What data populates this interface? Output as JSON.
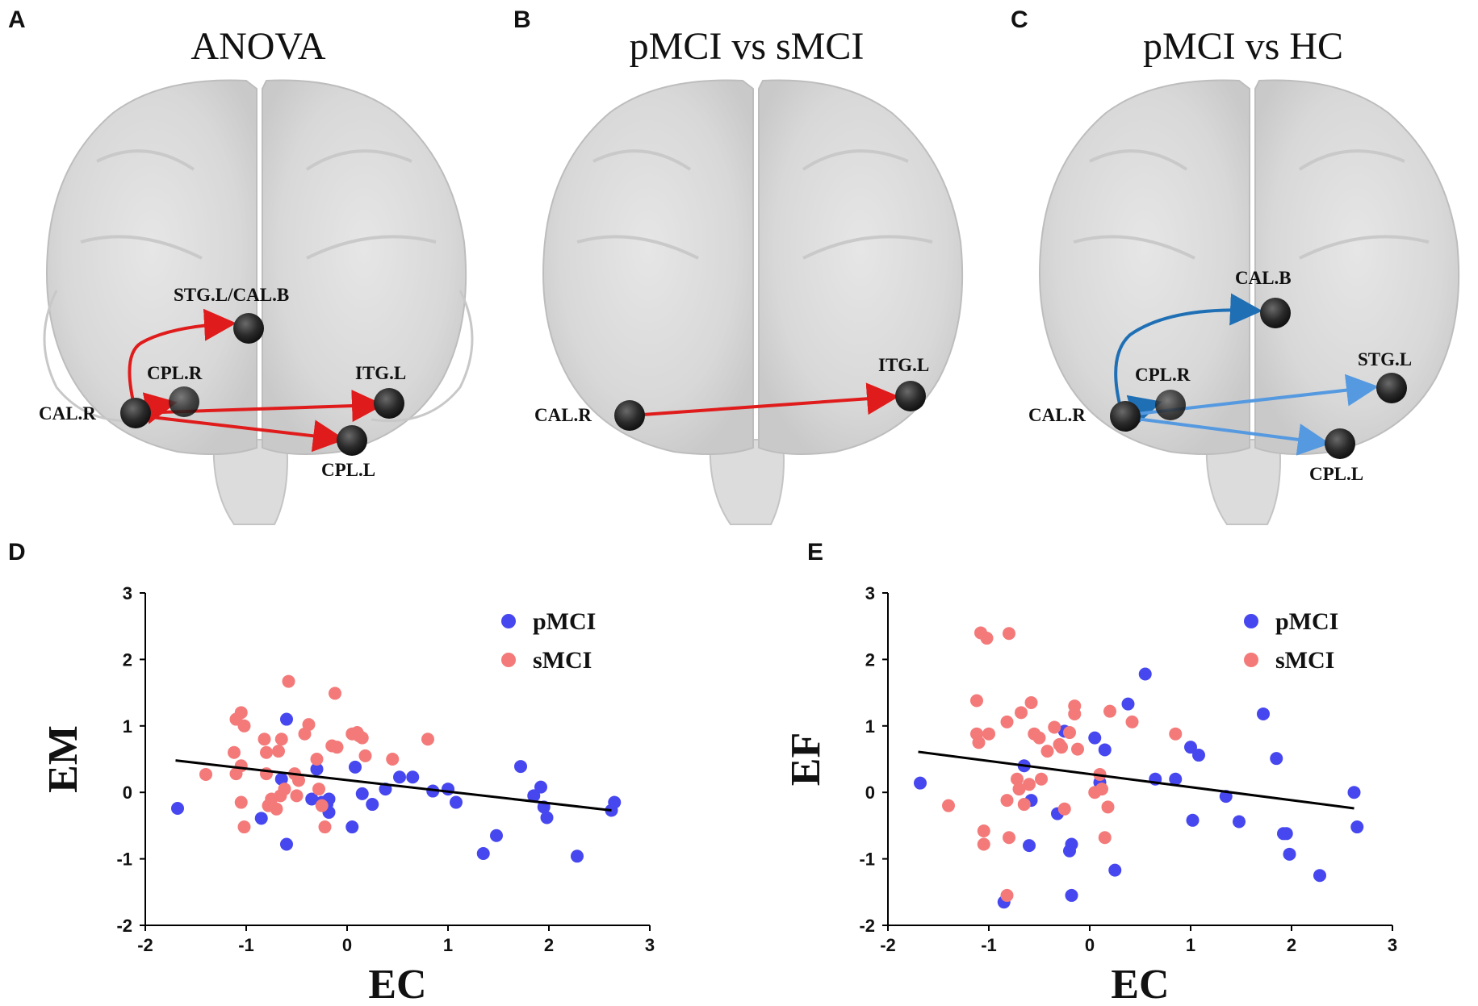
{
  "panels": {
    "A": {
      "letter": "A",
      "title": "ANOVA",
      "labels": {
        "cal_r": "CAL.R",
        "stg_cal": "STG.L/CAL.B",
        "cpl_r": "CPL.R",
        "itg_l": "ITG.L",
        "cpl_l": "CPL.L"
      }
    },
    "B": {
      "letter": "B",
      "title": "pMCI vs sMCI",
      "labels": {
        "cal_r": "CAL.R",
        "itg_l": "ITG.L"
      }
    },
    "C": {
      "letter": "C",
      "title": "pMCI vs HC",
      "labels": {
        "cal_r": "CAL.R",
        "cal_b": "CAL.B",
        "cpl_r": "CPL.R",
        "stg_l": "STG.L",
        "cpl_l": "CPL.L"
      }
    },
    "D": {
      "letter": "D"
    },
    "E": {
      "letter": "E"
    }
  },
  "colors": {
    "red_arrow": "#e01b1b",
    "dark_blue_arrow": "#1f6fb5",
    "light_blue_arrow": "#5599e0",
    "pMCI": "#4747f0",
    "sMCI": "#f47a7a",
    "fit_line": "#000000"
  },
  "chart_data": [
    {
      "type": "scatter",
      "panel": "D",
      "xlabel": "EC",
      "ylabel": "EM",
      "xlim": [
        -2,
        3
      ],
      "ylim": [
        -2,
        3
      ],
      "xticks": [
        "-2",
        "-1",
        "0",
        "1",
        "2",
        "3"
      ],
      "yticks": [
        "-2",
        "-1",
        "0",
        "1",
        "2",
        "3"
      ],
      "legend_position": "top-right",
      "fit_line": {
        "x": [
          -1.7,
          2.62
        ],
        "y": [
          0.48,
          -0.27
        ]
      },
      "series": [
        {
          "name": "pMCI",
          "points": [
            [
              -1.68,
              -0.24
            ],
            [
              -0.85,
              -0.39
            ],
            [
              -0.6,
              1.1
            ],
            [
              -0.6,
              -0.78
            ],
            [
              -0.65,
              0.2
            ],
            [
              -0.3,
              0.35
            ],
            [
              -0.35,
              -0.1
            ],
            [
              -0.25,
              -0.15
            ],
            [
              -0.2,
              -0.18
            ],
            [
              -0.18,
              -0.1
            ],
            [
              -0.18,
              -0.3
            ],
            [
              0.05,
              -0.52
            ],
            [
              0.08,
              0.38
            ],
            [
              0.15,
              -0.02
            ],
            [
              0.25,
              -0.18
            ],
            [
              0.38,
              0.05
            ],
            [
              0.52,
              0.23
            ],
            [
              0.65,
              0.23
            ],
            [
              0.85,
              0.02
            ],
            [
              1.0,
              0.05
            ],
            [
              1.08,
              -0.15
            ],
            [
              1.35,
              -0.92
            ],
            [
              1.48,
              -0.65
            ],
            [
              1.72,
              0.39
            ],
            [
              1.85,
              -0.05
            ],
            [
              1.92,
              0.08
            ],
            [
              1.95,
              -0.22
            ],
            [
              1.98,
              -0.38
            ],
            [
              2.28,
              -0.96
            ],
            [
              2.62,
              -0.27
            ],
            [
              2.65,
              -0.15
            ]
          ]
        },
        {
          "name": "sMCI",
          "points": [
            [
              -1.4,
              0.27
            ],
            [
              -1.12,
              0.6
            ],
            [
              -1.1,
              1.1
            ],
            [
              -1.05,
              1.2
            ],
            [
              -1.1,
              0.28
            ],
            [
              -1.05,
              0.4
            ],
            [
              -1.02,
              1.0
            ],
            [
              -1.05,
              -0.15
            ],
            [
              -1.02,
              -0.52
            ],
            [
              -0.82,
              0.8
            ],
            [
              -0.8,
              0.6
            ],
            [
              -0.8,
              0.28
            ],
            [
              -0.75,
              -0.1
            ],
            [
              -0.78,
              -0.2
            ],
            [
              -0.7,
              -0.25
            ],
            [
              -0.68,
              0.62
            ],
            [
              -0.66,
              -0.05
            ],
            [
              -0.65,
              0.8
            ],
            [
              -0.62,
              0.05
            ],
            [
              -0.58,
              1.67
            ],
            [
              -0.52,
              0.28
            ],
            [
              -0.5,
              -0.05
            ],
            [
              -0.48,
              0.18
            ],
            [
              -0.42,
              0.88
            ],
            [
              -0.38,
              1.02
            ],
            [
              -0.3,
              0.5
            ],
            [
              -0.28,
              0.05
            ],
            [
              -0.25,
              -0.2
            ],
            [
              -0.22,
              -0.52
            ],
            [
              -0.15,
              0.7
            ],
            [
              -0.12,
              1.49
            ],
            [
              -0.1,
              0.68
            ],
            [
              0.05,
              0.88
            ],
            [
              0.1,
              0.9
            ],
            [
              0.12,
              0.85
            ],
            [
              0.15,
              0.82
            ],
            [
              0.18,
              0.55
            ],
            [
              0.45,
              0.5
            ],
            [
              0.8,
              0.8
            ]
          ]
        }
      ]
    },
    {
      "type": "scatter",
      "panel": "E",
      "xlabel": "EC",
      "ylabel": "EF",
      "xlim": [
        -2,
        3
      ],
      "ylim": [
        -2,
        3
      ],
      "xticks": [
        "-2",
        "-1",
        "0",
        "1",
        "2",
        "3"
      ],
      "yticks": [
        "-2",
        "-1",
        "0",
        "1",
        "2",
        "3"
      ],
      "legend_position": "top-right",
      "fit_line": {
        "x": [
          -1.7,
          2.62
        ],
        "y": [
          0.61,
          -0.24
        ]
      },
      "series": [
        {
          "name": "pMCI",
          "points": [
            [
              -1.68,
              0.14
            ],
            [
              -0.85,
              -1.65
            ],
            [
              -0.65,
              0.4
            ],
            [
              -0.58,
              -0.12
            ],
            [
              -0.6,
              -0.8
            ],
            [
              -0.32,
              -0.32
            ],
            [
              -0.25,
              0.92
            ],
            [
              -0.18,
              -0.78
            ],
            [
              -0.2,
              -0.88
            ],
            [
              -0.18,
              -1.55
            ],
            [
              0.05,
              0.82
            ],
            [
              0.1,
              0.15
            ],
            [
              0.15,
              0.64
            ],
            [
              0.25,
              -1.17
            ],
            [
              0.38,
              1.33
            ],
            [
              0.55,
              1.78
            ],
            [
              0.65,
              0.2
            ],
            [
              0.85,
              0.2
            ],
            [
              1.0,
              0.68
            ],
            [
              1.02,
              -0.42
            ],
            [
              1.08,
              0.56
            ],
            [
              1.35,
              -0.06
            ],
            [
              1.48,
              -0.44
            ],
            [
              1.72,
              1.18
            ],
            [
              1.85,
              0.51
            ],
            [
              1.92,
              -0.62
            ],
            [
              1.95,
              -0.62
            ],
            [
              1.98,
              -0.93
            ],
            [
              2.28,
              -1.25
            ],
            [
              2.62,
              0.0
            ],
            [
              2.65,
              -0.52
            ]
          ]
        },
        {
          "name": "sMCI",
          "points": [
            [
              -1.4,
              -0.2
            ],
            [
              -1.12,
              1.38
            ],
            [
              -1.12,
              0.88
            ],
            [
              -1.08,
              2.4
            ],
            [
              -1.02,
              2.32
            ],
            [
              -1.1,
              0.75
            ],
            [
              -1.05,
              -0.58
            ],
            [
              -1.05,
              -0.78
            ],
            [
              -1.0,
              0.88
            ],
            [
              -0.8,
              2.39
            ],
            [
              -0.82,
              1.06
            ],
            [
              -0.82,
              -0.12
            ],
            [
              -0.8,
              -0.68
            ],
            [
              -0.82,
              -1.55
            ],
            [
              -0.72,
              0.2
            ],
            [
              -0.7,
              0.05
            ],
            [
              -0.68,
              1.2
            ],
            [
              -0.65,
              -0.18
            ],
            [
              -0.6,
              0.12
            ],
            [
              -0.58,
              1.35
            ],
            [
              -0.55,
              0.88
            ],
            [
              -0.5,
              0.82
            ],
            [
              -0.48,
              0.2
            ],
            [
              -0.42,
              0.62
            ],
            [
              -0.35,
              0.98
            ],
            [
              -0.3,
              0.72
            ],
            [
              -0.28,
              0.68
            ],
            [
              -0.25,
              -0.25
            ],
            [
              -0.2,
              0.9
            ],
            [
              -0.15,
              1.3
            ],
            [
              -0.15,
              1.18
            ],
            [
              -0.12,
              0.65
            ],
            [
              0.05,
              0.0
            ],
            [
              0.1,
              0.27
            ],
            [
              0.12,
              0.05
            ],
            [
              0.15,
              -0.68
            ],
            [
              0.18,
              -0.22
            ],
            [
              0.2,
              1.22
            ],
            [
              0.42,
              1.06
            ],
            [
              0.85,
              0.88
            ]
          ]
        }
      ]
    }
  ]
}
